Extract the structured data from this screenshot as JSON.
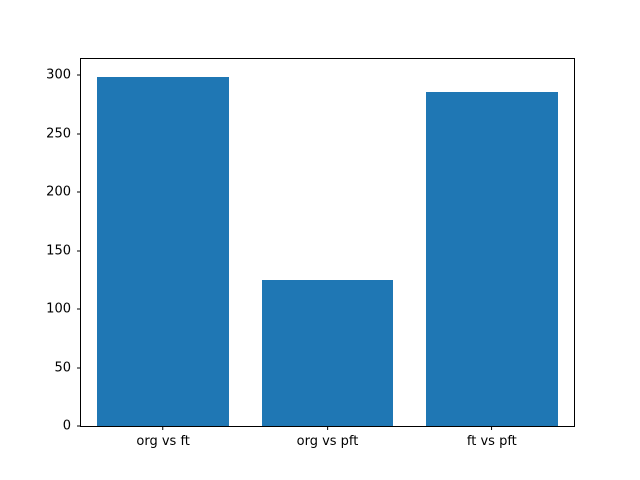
{
  "chart_data": {
    "type": "bar",
    "categories": [
      "org vs ft",
      "org vs pft",
      "ft vs pft"
    ],
    "values": [
      299,
      125,
      286
    ],
    "title": "",
    "xlabel": "",
    "ylabel": "",
    "ylim": [
      0,
      314
    ],
    "yticks": [
      0,
      50,
      100,
      150,
      200,
      250,
      300
    ],
    "bar_color": "#1f77b4",
    "bar_width_fraction": 0.8,
    "grid": false,
    "legend": null
  }
}
